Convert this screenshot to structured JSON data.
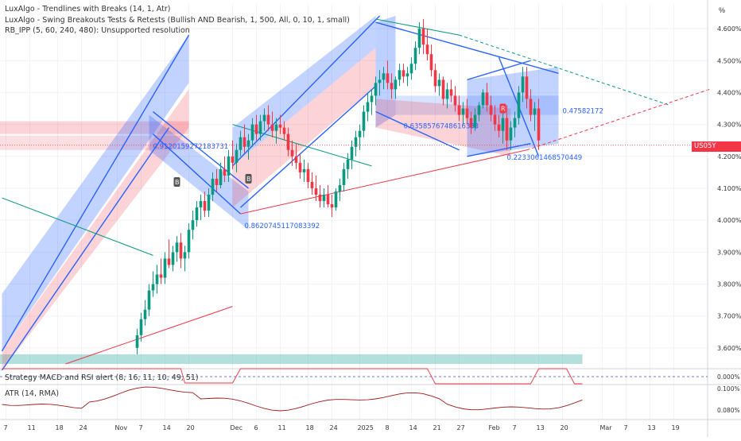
{
  "legend": {
    "line1": "LuxAlgo - Trendlines with Breaks (14, 1, Atr)",
    "line2": "LuxAlgo - Swing Breakouts Tests & Retests (Bullish AND Bearish, 1, 500, All, 0, 10, 1, small)",
    "line3": "RB_IPP (5, 60, 240, 480): Unsupported resolution"
  },
  "unit": "%",
  "price_badge": {
    "symbol": "US05Y",
    "value": "4.235%"
  },
  "macd_label": "Strategy MACD and RSI alert (8, 16, 11, 10, 49, 51)",
  "atr_label": "ATR (14, RMA)",
  "colors": {
    "up": "#089981",
    "down": "#f23645",
    "channel_up": "#2962ff",
    "channel_down": "#f23645",
    "trend_green": "#089981",
    "grid": "#f0f3fa"
  },
  "annotations": [
    {
      "text": "0.9120159272183731",
      "i": 38,
      "y": 4.225
    },
    {
      "text": "0.8620745117083392",
      "i": 61,
      "y": 3.975
    },
    {
      "text": "0.6358576748616333",
      "i": 101,
      "y": 4.288
    },
    {
      "text": "0.2233061468570449",
      "i": 127,
      "y": 4.19
    },
    {
      "text": "0.47582172",
      "i": 141,
      "y": 4.335
    }
  ],
  "chart_data": [
    {
      "type": "candlestick",
      "title": "US05Y",
      "y_axis": {
        "ticks": [
          "4.600%",
          "4.500%",
          "4.400%",
          "4.300%",
          "4.200%",
          "4.100%",
          "4.000%",
          "3.900%",
          "3.800%",
          "3.700%",
          "3.600%"
        ],
        "tick_values": [
          4.6,
          4.5,
          4.4,
          4.3,
          4.2,
          4.1,
          4.0,
          3.9,
          3.8,
          3.7,
          3.6
        ],
        "ylim": [
          3.54,
          4.64
        ]
      },
      "x_axis": {
        "tick_labels": [
          "7",
          "11",
          "18",
          "24",
          "Nov",
          "7",
          "14",
          "20",
          "Dec",
          "6",
          "11",
          "18",
          "24",
          "2025",
          "8",
          "14",
          "21",
          "27",
          "Feb",
          "7",
          "13",
          "20",
          "Mar",
          "7",
          "13",
          "19"
        ],
        "tick_index": [
          1,
          7,
          14,
          20,
          29,
          35,
          41,
          47,
          58,
          64,
          70,
          77,
          83,
          90,
          97,
          103,
          109,
          115,
          123,
          129,
          135,
          141,
          151,
          157,
          163,
          169
        ]
      },
      "last_price": 4.235,
      "ohlc": [
        [
          3.6,
          3.66,
          3.58,
          3.64
        ],
        [
          3.64,
          3.71,
          3.62,
          3.69
        ],
        [
          3.69,
          3.75,
          3.67,
          3.72
        ],
        [
          3.72,
          3.8,
          3.7,
          3.78
        ],
        [
          3.78,
          3.84,
          3.76,
          3.8
        ],
        [
          3.8,
          3.86,
          3.77,
          3.83
        ],
        [
          3.83,
          3.88,
          3.8,
          3.82
        ],
        [
          3.82,
          3.9,
          3.8,
          3.88
        ],
        [
          3.88,
          3.94,
          3.85,
          3.86
        ],
        [
          3.86,
          3.92,
          3.84,
          3.9
        ],
        [
          3.9,
          3.95,
          3.87,
          3.93
        ],
        [
          3.93,
          3.96,
          3.85,
          3.88
        ],
        [
          3.88,
          3.92,
          3.84,
          3.9
        ],
        [
          3.9,
          3.99,
          3.88,
          3.97
        ],
        [
          3.97,
          4.03,
          3.94,
          4.0
        ],
        [
          4.0,
          4.06,
          3.98,
          4.04
        ],
        [
          4.04,
          4.08,
          4.0,
          4.06
        ],
        [
          4.06,
          4.09,
          4.01,
          4.03
        ],
        [
          4.03,
          4.1,
          4.01,
          4.08
        ],
        [
          4.08,
          4.15,
          4.06,
          4.13
        ],
        [
          4.13,
          4.16,
          4.09,
          4.11
        ],
        [
          4.11,
          4.18,
          4.1,
          4.16
        ],
        [
          4.16,
          4.2,
          4.12,
          4.14
        ],
        [
          4.14,
          4.22,
          4.12,
          4.2
        ],
        [
          4.2,
          4.25,
          4.16,
          4.18
        ],
        [
          4.18,
          4.24,
          4.15,
          4.22
        ],
        [
          4.22,
          4.28,
          4.2,
          4.26
        ],
        [
          4.26,
          4.3,
          4.21,
          4.23
        ],
        [
          4.23,
          4.27,
          4.19,
          4.25
        ],
        [
          4.25,
          4.32,
          4.23,
          4.3
        ],
        [
          4.3,
          4.33,
          4.25,
          4.27
        ],
        [
          4.27,
          4.33,
          4.25,
          4.31
        ],
        [
          4.31,
          4.35,
          4.28,
          4.33
        ],
        [
          4.33,
          4.36,
          4.28,
          4.3
        ],
        [
          4.3,
          4.34,
          4.26,
          4.28
        ],
        [
          4.28,
          4.32,
          4.24,
          4.3
        ],
        [
          4.3,
          4.33,
          4.27,
          4.29
        ],
        [
          4.29,
          4.31,
          4.25,
          4.27
        ],
        [
          4.27,
          4.29,
          4.2,
          4.22
        ],
        [
          4.22,
          4.25,
          4.17,
          4.2
        ],
        [
          4.2,
          4.24,
          4.16,
          4.18
        ],
        [
          4.18,
          4.21,
          4.13,
          4.15
        ],
        [
          4.15,
          4.19,
          4.12,
          4.16
        ],
        [
          4.16,
          4.18,
          4.1,
          4.12
        ],
        [
          4.12,
          4.15,
          4.08,
          4.1
        ],
        [
          4.1,
          4.14,
          4.06,
          4.08
        ],
        [
          4.08,
          4.11,
          4.04,
          4.06
        ],
        [
          4.06,
          4.1,
          4.04,
          4.08
        ],
        [
          4.08,
          4.11,
          4.04,
          4.05
        ],
        [
          4.05,
          4.08,
          4.01,
          4.04
        ],
        [
          4.04,
          4.1,
          4.03,
          4.09
        ],
        [
          4.09,
          4.13,
          4.06,
          4.11
        ],
        [
          4.11,
          4.18,
          4.09,
          4.16
        ],
        [
          4.16,
          4.21,
          4.13,
          4.19
        ],
        [
          4.19,
          4.25,
          4.16,
          4.23
        ],
        [
          4.23,
          4.28,
          4.2,
          4.26
        ],
        [
          4.26,
          4.3,
          4.22,
          4.28
        ],
        [
          4.28,
          4.36,
          4.26,
          4.34
        ],
        [
          4.34,
          4.4,
          4.31,
          4.37
        ],
        [
          4.37,
          4.41,
          4.33,
          4.39
        ],
        [
          4.39,
          4.45,
          4.36,
          4.43
        ],
        [
          4.43,
          4.47,
          4.39,
          4.44
        ],
        [
          4.44,
          4.48,
          4.41,
          4.46
        ],
        [
          4.46,
          4.5,
          4.41,
          4.43
        ],
        [
          4.43,
          4.46,
          4.38,
          4.41
        ],
        [
          4.41,
          4.45,
          4.38,
          4.44
        ],
        [
          4.44,
          4.49,
          4.42,
          4.47
        ],
        [
          4.47,
          4.49,
          4.43,
          4.45
        ],
        [
          4.45,
          4.48,
          4.42,
          4.46
        ],
        [
          4.46,
          4.51,
          4.44,
          4.49
        ],
        [
          4.49,
          4.56,
          4.47,
          4.54
        ],
        [
          4.54,
          4.62,
          4.52,
          4.6
        ],
        [
          4.6,
          4.63,
          4.52,
          4.55
        ],
        [
          4.55,
          4.6,
          4.5,
          4.52
        ],
        [
          4.52,
          4.55,
          4.45,
          4.47
        ],
        [
          4.47,
          4.49,
          4.4,
          4.42
        ],
        [
          4.42,
          4.46,
          4.39,
          4.44
        ],
        [
          4.44,
          4.45,
          4.36,
          4.38
        ],
        [
          4.38,
          4.43,
          4.35,
          4.41
        ],
        [
          4.41,
          4.44,
          4.37,
          4.39
        ],
        [
          4.39,
          4.42,
          4.34,
          4.36
        ],
        [
          4.36,
          4.39,
          4.31,
          4.33
        ],
        [
          4.33,
          4.37,
          4.3,
          4.35
        ],
        [
          4.35,
          4.38,
          4.3,
          4.32
        ],
        [
          4.32,
          4.34,
          4.27,
          4.29
        ],
        [
          4.29,
          4.35,
          4.28,
          4.33
        ],
        [
          4.33,
          4.37,
          4.31,
          4.36
        ],
        [
          4.36,
          4.41,
          4.35,
          4.4
        ],
        [
          4.4,
          4.43,
          4.34,
          4.36
        ],
        [
          4.36,
          4.39,
          4.31,
          4.33
        ],
        [
          4.33,
          4.36,
          4.28,
          4.3
        ],
        [
          4.3,
          4.33,
          4.26,
          4.28
        ],
        [
          4.28,
          4.34,
          4.24,
          4.32
        ],
        [
          4.32,
          4.36,
          4.22,
          4.25
        ],
        [
          4.25,
          4.31,
          4.22,
          4.29
        ],
        [
          4.29,
          4.34,
          4.26,
          4.32
        ],
        [
          4.32,
          4.42,
          4.3,
          4.4
        ],
        [
          4.4,
          4.48,
          4.37,
          4.45
        ],
        [
          4.45,
          4.48,
          4.35,
          4.38
        ],
        [
          4.38,
          4.41,
          4.31,
          4.33
        ],
        [
          4.33,
          4.37,
          4.28,
          4.35
        ],
        [
          4.35,
          4.38,
          4.22,
          4.25
        ]
      ],
      "indicators": {
        "macd_strategy": "step line between two levels",
        "atr": "single line"
      }
    }
  ]
}
